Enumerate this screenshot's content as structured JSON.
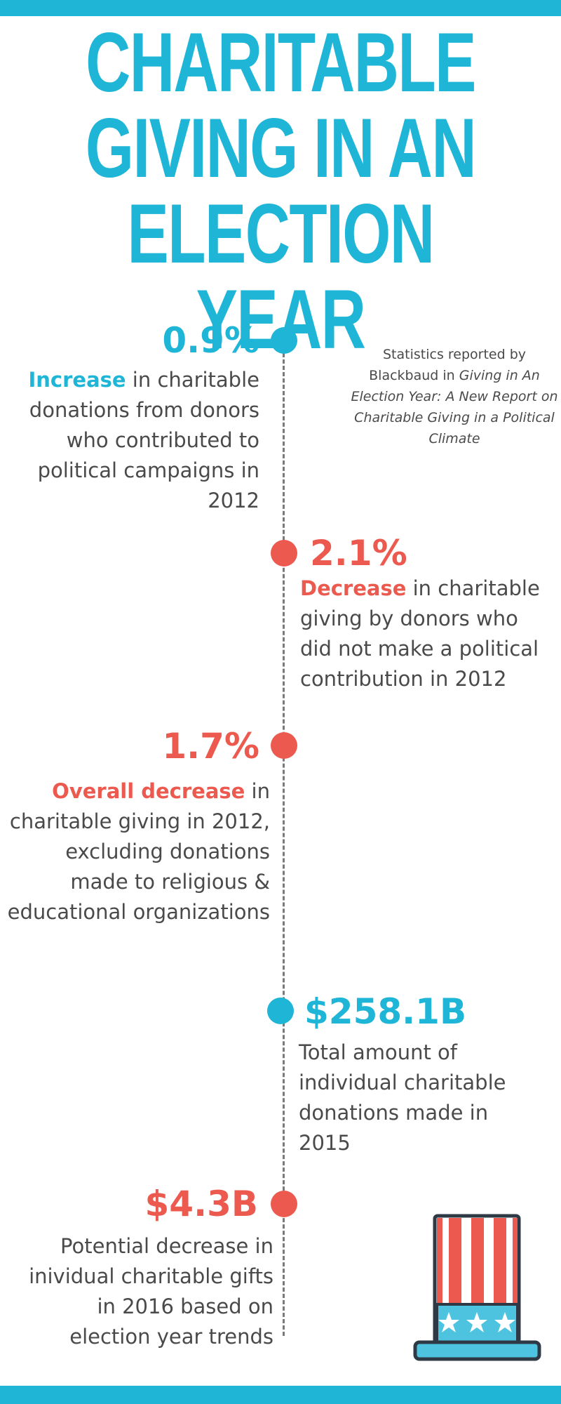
{
  "colors": {
    "blue": "#1fb5d6",
    "red": "#ec5a4f",
    "text": "#4a4a4a",
    "line": "#7a7a7a"
  },
  "title": {
    "line1": "CHARITABLE",
    "line2": "GIVING IN AN",
    "line3": "ELECTION YEAR"
  },
  "source": {
    "prefix": "Statistics reported by Blackbaud in ",
    "italic": "Giving in An Election Year: A New Report on Charitable Giving in a Political Climate"
  },
  "stats": [
    {
      "value": "0.9%",
      "highlight": "Increase",
      "text": " in charitable donations from donors who contributed to political campaigns in 2012",
      "color": "blue"
    },
    {
      "value": "2.1%",
      "highlight": "Decrease",
      "text": " in charitable giving by donors who did not make a political contribution in 2012",
      "color": "red"
    },
    {
      "value": "1.7%",
      "highlight": "Overall decrease",
      "text": " in charitable giving in 2012, excluding donations made to religious & educational organizations",
      "color": "red"
    },
    {
      "value": "$258.1B",
      "highlight": "",
      "text": "Total amount of individual charitable donations made in 2015",
      "color": "blue"
    },
    {
      "value": "$4.3B",
      "highlight": "",
      "text": "Potential decrease in inividual charitable gifts in 2016 based on election year trends",
      "color": "red"
    }
  ],
  "icons": {
    "hat": "uncle-sam-hat-icon"
  }
}
